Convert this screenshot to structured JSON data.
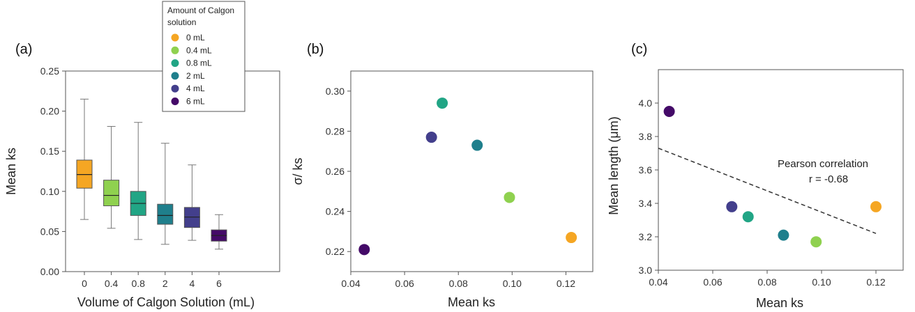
{
  "legend": {
    "title_lines": [
      "Amount of Calgon",
      "solution"
    ],
    "entries": [
      {
        "label": "0 mL",
        "color": "#f5a623"
      },
      {
        "label": "0.4 mL",
        "color": "#8fd14f"
      },
      {
        "label": "0.8 mL",
        "color": "#21a585"
      },
      {
        "label": "2 mL",
        "color": "#1f7f8c"
      },
      {
        "label": "4 mL",
        "color": "#433f8c"
      },
      {
        "label": "6 mL",
        "color": "#440a68"
      }
    ]
  },
  "chart_data": [
    {
      "type": "box",
      "panel_label": "(a)",
      "xlabel": "Volume of Calgon Solution (mL)",
      "ylabel": "Mean ks",
      "ylim": [
        0,
        0.25
      ],
      "yticks": [
        "0.00",
        "0.05",
        "0.10",
        "0.15",
        "0.20",
        "0.25"
      ],
      "categories": [
        "0",
        "0.4",
        "0.8",
        "2",
        "4",
        "6"
      ],
      "boxes": [
        {
          "min": 0.065,
          "q1": 0.104,
          "median": 0.121,
          "q3": 0.139,
          "max": 0.215,
          "color": "#f5a623"
        },
        {
          "min": 0.054,
          "q1": 0.082,
          "median": 0.095,
          "q3": 0.114,
          "max": 0.181,
          "color": "#8fd14f"
        },
        {
          "min": 0.04,
          "q1": 0.07,
          "median": 0.085,
          "q3": 0.1,
          "max": 0.186,
          "color": "#21a585"
        },
        {
          "min": 0.034,
          "q1": 0.059,
          "median": 0.07,
          "q3": 0.084,
          "max": 0.16,
          "color": "#1f7f8c"
        },
        {
          "min": 0.039,
          "q1": 0.055,
          "median": 0.068,
          "q3": 0.08,
          "max": 0.133,
          "color": "#433f8c"
        },
        {
          "min": 0.028,
          "q1": 0.038,
          "median": 0.045,
          "q3": 0.052,
          "max": 0.071,
          "color": "#440a68"
        }
      ]
    },
    {
      "type": "scatter",
      "panel_label": "(b)",
      "xlabel": "Mean ks",
      "ylabel": "σ/ ks",
      "xlim": [
        0.04,
        0.13
      ],
      "ylim": [
        0.21,
        0.31
      ],
      "xticks": [
        "0.04",
        "0.06",
        "0.08",
        "0.10",
        "0.12"
      ],
      "yticks": [
        "0.22",
        "0.24",
        "0.26",
        "0.28",
        "0.30"
      ],
      "points": [
        {
          "x": 0.122,
          "y": 0.227,
          "color": "#f5a623"
        },
        {
          "x": 0.099,
          "y": 0.247,
          "color": "#8fd14f"
        },
        {
          "x": 0.074,
          "y": 0.294,
          "color": "#21a585"
        },
        {
          "x": 0.087,
          "y": 0.273,
          "color": "#1f7f8c"
        },
        {
          "x": 0.07,
          "y": 0.277,
          "color": "#433f8c"
        },
        {
          "x": 0.045,
          "y": 0.221,
          "color": "#440a68"
        }
      ]
    },
    {
      "type": "scatter",
      "panel_label": "(c)",
      "xlabel": "Mean ks",
      "ylabel": "Mean length (μm)",
      "xlim": [
        0.04,
        0.13
      ],
      "ylim": [
        3.0,
        4.2
      ],
      "xticks": [
        "0.04",
        "0.06",
        "0.08",
        "0.10",
        "0.12"
      ],
      "yticks": [
        "3.0",
        "3.2",
        "3.4",
        "3.6",
        "3.8",
        "4.0"
      ],
      "points": [
        {
          "x": 0.12,
          "y": 3.38,
          "color": "#f5a623"
        },
        {
          "x": 0.098,
          "y": 3.17,
          "color": "#8fd14f"
        },
        {
          "x": 0.073,
          "y": 3.32,
          "color": "#21a585"
        },
        {
          "x": 0.086,
          "y": 3.21,
          "color": "#1f7f8c"
        },
        {
          "x": 0.067,
          "y": 3.38,
          "color": "#433f8c"
        },
        {
          "x": 0.044,
          "y": 3.95,
          "color": "#440a68"
        }
      ],
      "trendline": {
        "x": [
          0.04,
          0.12
        ],
        "y": [
          3.73,
          3.22
        ]
      },
      "annotation": [
        "Pearson correlation",
        "r = -0.68"
      ]
    }
  ]
}
